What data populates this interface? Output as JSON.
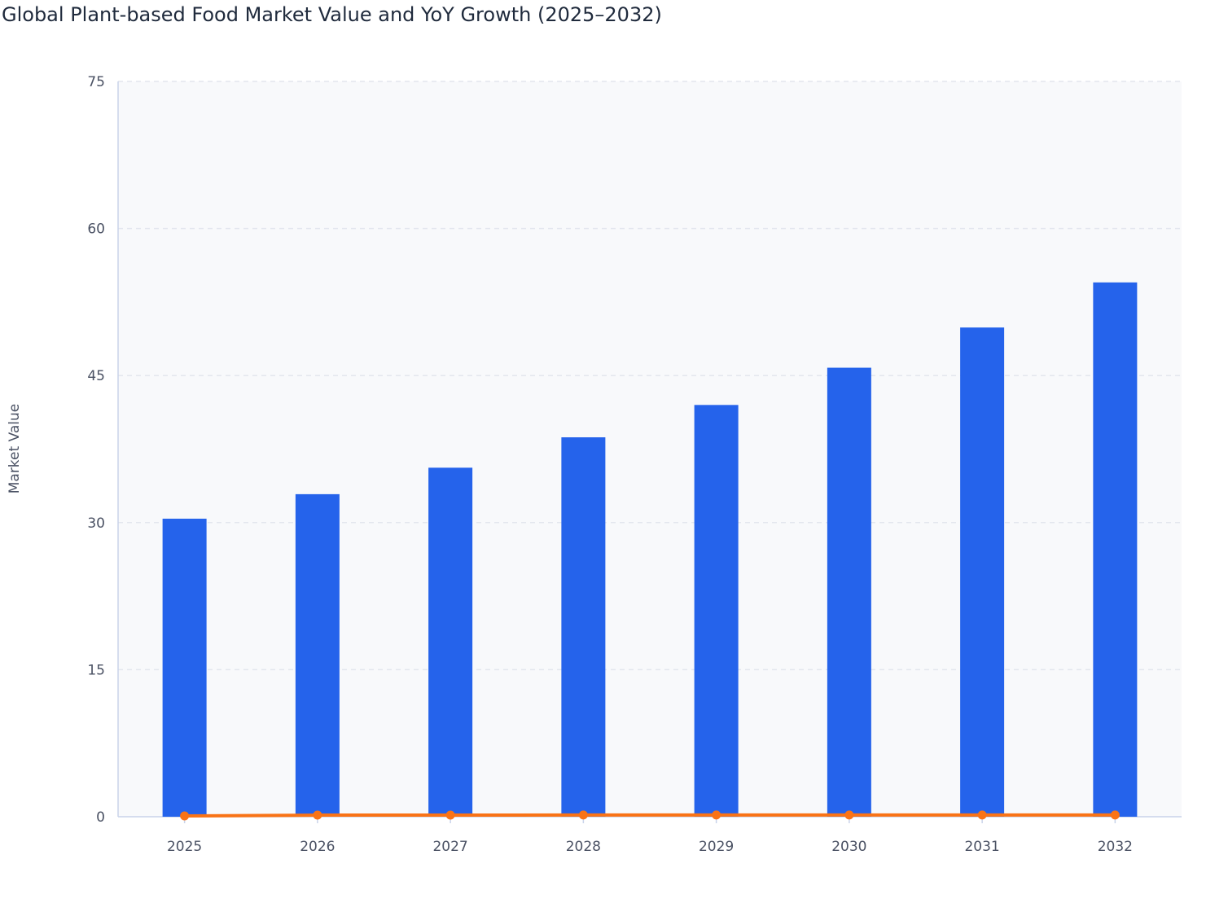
{
  "chart_data": {
    "type": "bar",
    "title": "Global Plant-based Food Market Value and YoY Growth (2025–2032)",
    "xlabel": "",
    "ylabel": "Market Value",
    "ylim": [
      0,
      75
    ],
    "yticks": [
      0,
      15,
      30,
      45,
      60,
      75
    ],
    "grid": true,
    "categories": [
      "2025",
      "2026",
      "2027",
      "2028",
      "2029",
      "2030",
      "2031",
      "2032"
    ],
    "series": [
      {
        "type": "bar",
        "color": "#2563eb",
        "values": [
          30.4,
          32.9,
          35.6,
          38.7,
          42.0,
          45.8,
          49.9,
          54.5
        ]
      },
      {
        "type": "line",
        "color": "#f97316",
        "values": [
          0,
          0.08,
          0.08,
          0.09,
          0.09,
          0.09,
          0.09,
          0.09
        ]
      }
    ],
    "colors": {
      "plot_bg": "#f8f9fb",
      "grid": "#e3e6ee",
      "axis": "#c9d3ea"
    }
  }
}
